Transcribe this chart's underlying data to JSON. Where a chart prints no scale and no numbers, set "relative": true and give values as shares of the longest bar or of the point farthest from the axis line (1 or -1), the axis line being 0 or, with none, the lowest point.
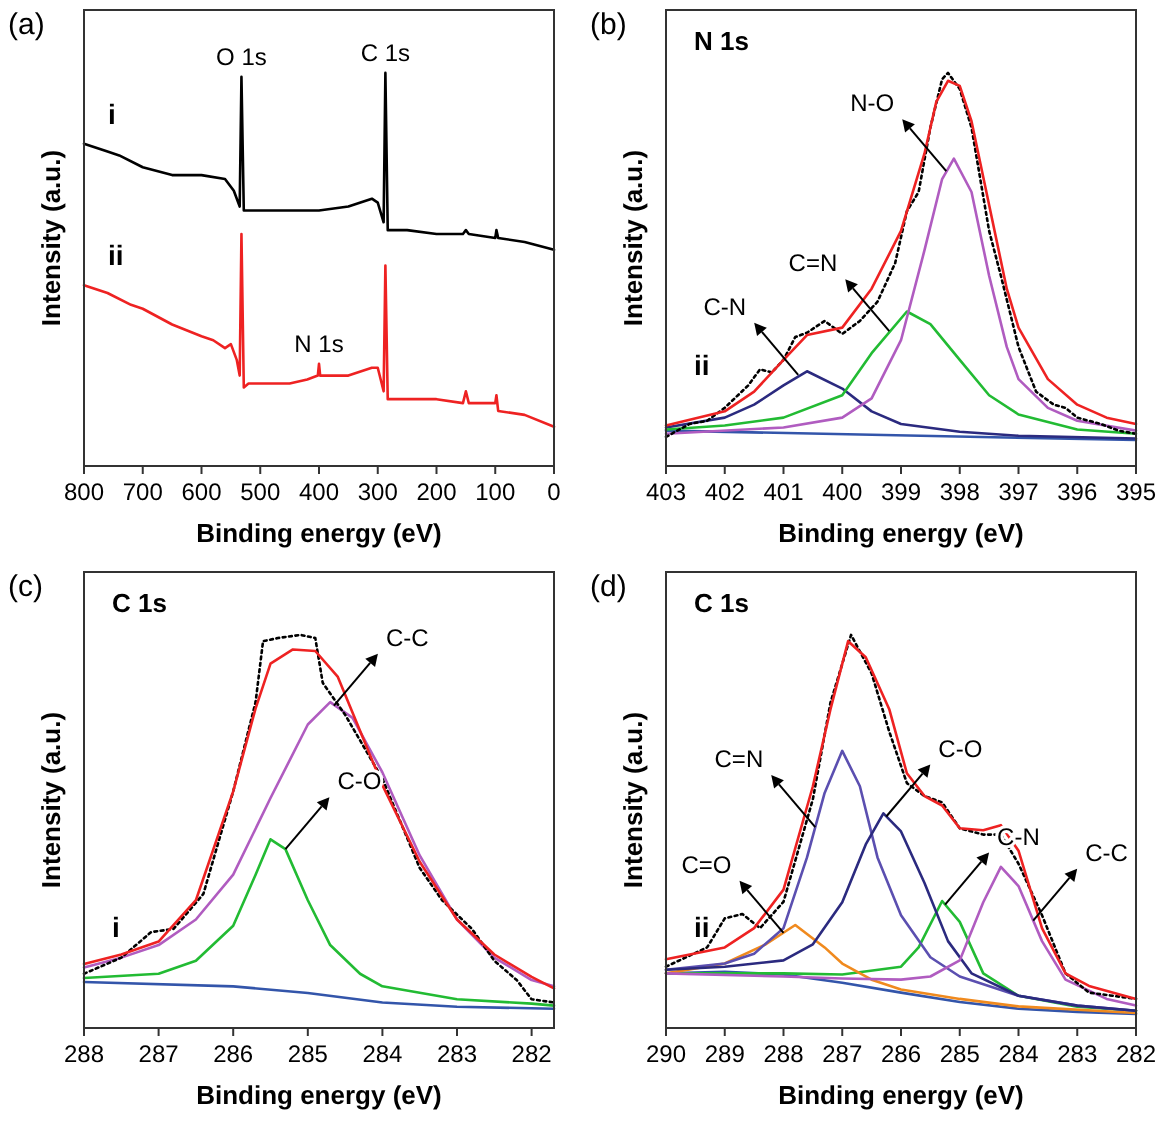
{
  "chart_data": [
    {
      "type": "line",
      "title": "(a)",
      "xlabel": "Binding energy (eV)",
      "ylabel": "Intensity (a.u.)",
      "relative": true,
      "xlim": [
        800,
        0
      ],
      "xticks": [
        800,
        700,
        600,
        500,
        400,
        300,
        200,
        100,
        0
      ],
      "series": [
        {
          "name": "i",
          "color": "#000000",
          "x": [
            800,
            760,
            740,
            700,
            650,
            600,
            560,
            545,
            535,
            532,
            528,
            520,
            450,
            400,
            350,
            310,
            300,
            290,
            287,
            283,
            250,
            200,
            155,
            150,
            145,
            100,
            98,
            95,
            50,
            0
          ],
          "values": [
            0.82,
            0.8,
            0.79,
            0.76,
            0.74,
            0.74,
            0.73,
            0.7,
            0.66,
            0.99,
            0.65,
            0.65,
            0.65,
            0.65,
            0.66,
            0.68,
            0.67,
            0.62,
            1.0,
            0.6,
            0.6,
            0.59,
            0.59,
            0.6,
            0.59,
            0.58,
            0.6,
            0.58,
            0.57,
            0.55
          ]
        },
        {
          "name": "ii",
          "color": "#ee2222",
          "x": [
            800,
            760,
            720,
            700,
            650,
            600,
            580,
            560,
            550,
            540,
            535,
            532,
            528,
            520,
            450,
            420,
            402,
            400,
            398,
            350,
            310,
            300,
            290,
            287,
            283,
            250,
            200,
            155,
            150,
            145,
            100,
            98,
            95,
            50,
            0
          ],
          "values": [
            0.46,
            0.44,
            0.41,
            0.4,
            0.36,
            0.33,
            0.32,
            0.3,
            0.31,
            0.27,
            0.23,
            0.59,
            0.2,
            0.21,
            0.21,
            0.22,
            0.23,
            0.26,
            0.23,
            0.23,
            0.25,
            0.25,
            0.19,
            0.51,
            0.17,
            0.17,
            0.17,
            0.16,
            0.19,
            0.16,
            0.16,
            0.18,
            0.14,
            0.13,
            0.1
          ]
        }
      ],
      "annotations": [
        {
          "text": "O 1s",
          "x": 532,
          "y": 0.99
        },
        {
          "text": "C 1s",
          "x": 287,
          "y": 1.0
        },
        {
          "text": "N 1s",
          "x": 400,
          "y": 0.26
        }
      ]
    },
    {
      "type": "line",
      "title": "(b)",
      "subtitle": "N 1s",
      "xlabel": "Binding energy (eV)",
      "ylabel": "Intensity (a.u.)",
      "relative": true,
      "xlim": [
        403,
        395
      ],
      "xticks": [
        403,
        402,
        401,
        400,
        399,
        398,
        397,
        396,
        395
      ],
      "series": [
        {
          "color": "#3355aa",
          "x": [
            403,
            395
          ],
          "values": [
            0.09,
            0.066
          ]
        },
        {
          "color": "#2b2a7f",
          "x": [
            403,
            402,
            401.5,
            401,
            400.6,
            400,
            399.5,
            399,
            398,
            397,
            395
          ],
          "values": [
            0.098,
            0.123,
            0.156,
            0.205,
            0.241,
            0.197,
            0.139,
            0.107,
            0.087,
            0.077,
            0.07
          ]
        },
        {
          "color": "#22bb33",
          "x": [
            403,
            402,
            401,
            400,
            399.5,
            398.9,
            398.5,
            398,
            397.5,
            397,
            396,
            395
          ],
          "values": [
            0.093,
            0.103,
            0.123,
            0.18,
            0.287,
            0.393,
            0.361,
            0.27,
            0.18,
            0.131,
            0.093,
            0.082
          ]
        },
        {
          "color": "#b05cc0",
          "x": [
            403,
            401,
            400,
            399.5,
            399,
            398.6,
            398.3,
            398.1,
            397.8,
            397.5,
            397.2,
            397,
            396.5,
            396,
            395
          ],
          "values": [
            0.082,
            0.098,
            0.123,
            0.172,
            0.32,
            0.549,
            0.73,
            0.782,
            0.697,
            0.484,
            0.303,
            0.221,
            0.148,
            0.115,
            0.09
          ]
        },
        {
          "color": "#000000",
          "line_style": "dotted",
          "x": [
            403,
            402.6,
            402.3,
            402,
            401.6,
            401.4,
            401.2,
            401,
            400.8,
            400.6,
            400.3,
            400,
            399.7,
            399.4,
            399.1,
            398.9,
            398.7,
            398.5,
            398.3,
            398.2,
            398,
            397.8,
            397.5,
            397.3,
            397,
            396.7,
            396.4,
            396.2,
            396,
            395.6,
            395.3,
            395
          ],
          "values": [
            0.074,
            0.107,
            0.115,
            0.148,
            0.205,
            0.246,
            0.238,
            0.27,
            0.328,
            0.339,
            0.369,
            0.336,
            0.369,
            0.418,
            0.516,
            0.648,
            0.697,
            0.861,
            0.984,
            1.0,
            0.959,
            0.861,
            0.598,
            0.484,
            0.303,
            0.189,
            0.156,
            0.148,
            0.123,
            0.107,
            0.09,
            0.082
          ]
        },
        {
          "color": "#ee2222",
          "x": [
            403,
            402,
            401.5,
            401,
            400.6,
            400,
            399.5,
            399,
            398.6,
            398.4,
            398.2,
            398,
            397.8,
            397.5,
            397.2,
            397,
            396.5,
            396,
            395.5,
            395
          ],
          "values": [
            0.103,
            0.139,
            0.189,
            0.27,
            0.333,
            0.352,
            0.451,
            0.598,
            0.795,
            0.926,
            0.98,
            0.967,
            0.877,
            0.664,
            0.451,
            0.352,
            0.221,
            0.156,
            0.123,
            0.107
          ]
        }
      ],
      "annotations": [
        "ii",
        {
          "text": "C-N",
          "x": 400.75,
          "y": 0.232
        },
        {
          "text": "C=N",
          "x": 399.2,
          "y": 0.343
        },
        {
          "text": "N-O",
          "x": 398.23,
          "y": 0.75
        }
      ]
    },
    {
      "type": "line",
      "title": "(c)",
      "subtitle": "C 1s",
      "xlabel": "Binding energy (eV)",
      "ylabel": "Intensity (a.u.)",
      "relative": true,
      "xlim": [
        288,
        281.7
      ],
      "xticks": [
        288,
        287,
        286,
        285,
        284,
        283,
        282
      ],
      "series": [
        {
          "color": "#3355aa",
          "x": [
            288,
            286,
            285,
            284,
            283,
            281.7
          ],
          "values": [
            0.117,
            0.106,
            0.089,
            0.065,
            0.054,
            0.049
          ]
        },
        {
          "color": "#22bb33",
          "x": [
            288,
            287,
            286.5,
            286,
            285.7,
            285.5,
            285.3,
            285,
            284.7,
            284.3,
            284,
            283,
            282,
            281.7
          ],
          "values": [
            0.127,
            0.138,
            0.171,
            0.26,
            0.39,
            0.48,
            0.455,
            0.325,
            0.211,
            0.138,
            0.106,
            0.073,
            0.062,
            0.057
          ]
        },
        {
          "color": "#b05cc0",
          "x": [
            288,
            287.5,
            287,
            286.5,
            286,
            285.5,
            285,
            284.7,
            284.4,
            284,
            283.5,
            283,
            282.5,
            282,
            281.7
          ],
          "values": [
            0.154,
            0.179,
            0.211,
            0.276,
            0.39,
            0.585,
            0.772,
            0.829,
            0.789,
            0.65,
            0.439,
            0.276,
            0.179,
            0.122,
            0.106
          ]
        },
        {
          "color": "#000000",
          "line_style": "dotted",
          "x": [
            288,
            287.5,
            287.1,
            286.8,
            286.4,
            286,
            285.7,
            285.6,
            285.4,
            285.1,
            284.9,
            284.8,
            284.5,
            284,
            283.5,
            283.2,
            282.8,
            282.5,
            282.2,
            282,
            281.7
          ],
          "values": [
            0.138,
            0.179,
            0.244,
            0.252,
            0.341,
            0.602,
            0.829,
            0.984,
            0.992,
            1.0,
            0.992,
            0.878,
            0.797,
            0.634,
            0.407,
            0.325,
            0.252,
            0.171,
            0.122,
            0.073,
            0.065
          ]
        },
        {
          "color": "#ee2222",
          "x": [
            288,
            287.5,
            287,
            286.5,
            286,
            285.7,
            285.5,
            285.2,
            284.9,
            284.6,
            284.3,
            284,
            283.5,
            283,
            282.5,
            282,
            281.7
          ],
          "values": [
            0.163,
            0.187,
            0.22,
            0.325,
            0.602,
            0.813,
            0.927,
            0.963,
            0.959,
            0.894,
            0.756,
            0.618,
            0.423,
            0.276,
            0.187,
            0.13,
            0.101
          ]
        }
      ],
      "annotations": [
        "i",
        {
          "text": "C-C",
          "x": 284.65,
          "y": 0.82
        },
        {
          "text": "C-O",
          "x": 285.3,
          "y": 0.455
        }
      ]
    },
    {
      "type": "line",
      "title": "(d)",
      "subtitle": "C 1s",
      "xlabel": "Binding energy (eV)",
      "ylabel": "Intensity (a.u.)",
      "relative": true,
      "xlim": [
        290,
        282
      ],
      "xticks": [
        290,
        289,
        288,
        287,
        286,
        285,
        284,
        283,
        282
      ],
      "series": [
        {
          "color": "#3355aa",
          "x": [
            290,
            289,
            288,
            287,
            286,
            285,
            284,
            283,
            282
          ],
          "values": [
            0.139,
            0.143,
            0.136,
            0.115,
            0.09,
            0.066,
            0.049,
            0.041,
            0.036
          ]
        },
        {
          "color": "#22bb33",
          "x": [
            290,
            288,
            287,
            286,
            285.7,
            285.3,
            285,
            284.6,
            284,
            283,
            282
          ],
          "values": [
            0.139,
            0.139,
            0.136,
            0.156,
            0.205,
            0.323,
            0.27,
            0.139,
            0.082,
            0.054,
            0.044
          ]
        },
        {
          "color": "#f08a1e",
          "x": [
            290,
            289,
            288.3,
            287.8,
            287.3,
            287,
            286.5,
            286,
            285,
            284,
            282
          ],
          "values": [
            0.139,
            0.164,
            0.213,
            0.262,
            0.205,
            0.164,
            0.123,
            0.098,
            0.074,
            0.055,
            0.038
          ]
        },
        {
          "color": "#5b4fb0",
          "x": [
            290,
            289,
            288.5,
            288,
            287.6,
            287.3,
            287,
            286.7,
            286.4,
            286,
            285.5,
            285,
            284,
            283,
            282
          ],
          "values": [
            0.148,
            0.164,
            0.189,
            0.254,
            0.434,
            0.598,
            0.705,
            0.615,
            0.434,
            0.287,
            0.18,
            0.131,
            0.082,
            0.057,
            0.044
          ]
        },
        {
          "color": "#2b2a7f",
          "x": [
            290,
            289,
            288,
            287.5,
            287,
            286.6,
            286.3,
            286,
            285.6,
            285.2,
            284.8,
            284,
            283,
            282
          ],
          "values": [
            0.148,
            0.156,
            0.172,
            0.213,
            0.32,
            0.467,
            0.546,
            0.5,
            0.369,
            0.221,
            0.139,
            0.082,
            0.057,
            0.044
          ]
        },
        {
          "color": "#b05cc0",
          "x": [
            290,
            288,
            287,
            286,
            285.5,
            285,
            284.6,
            284.3,
            284,
            283.6,
            283.2,
            282.5,
            282
          ],
          "values": [
            0.139,
            0.131,
            0.126,
            0.123,
            0.131,
            0.172,
            0.32,
            0.41,
            0.361,
            0.221,
            0.123,
            0.074,
            0.057
          ]
        },
        {
          "color": "#000000",
          "line_style": "dotted",
          "x": [
            290,
            289.3,
            289,
            288.7,
            288.4,
            288,
            287.5,
            287.2,
            286.85,
            286.5,
            286.2,
            285.9,
            285.6,
            285.3,
            285,
            284.6,
            284.3,
            284,
            283.6,
            283.2,
            282.8,
            282
          ],
          "values": [
            0.156,
            0.205,
            0.279,
            0.29,
            0.254,
            0.321,
            0.582,
            0.828,
            1.0,
            0.902,
            0.754,
            0.623,
            0.59,
            0.574,
            0.508,
            0.492,
            0.492,
            0.418,
            0.287,
            0.139,
            0.09,
            0.074
          ]
        },
        {
          "color": "#ee2222",
          "x": [
            290,
            289,
            288.5,
            288,
            287.5,
            287.2,
            286.9,
            286.6,
            286.2,
            285.9,
            285.6,
            285.3,
            285,
            284.6,
            284.3,
            284,
            283.6,
            283.2,
            282.8,
            282
          ],
          "values": [
            0.175,
            0.205,
            0.254,
            0.352,
            0.615,
            0.811,
            0.984,
            0.943,
            0.811,
            0.648,
            0.59,
            0.566,
            0.508,
            0.503,
            0.516,
            0.451,
            0.254,
            0.139,
            0.107,
            0.074
          ]
        }
      ],
      "annotations": [
        "ii",
        {
          "text": "C=N",
          "x": 287.46,
          "y": 0.511
        },
        {
          "text": "C=O",
          "x": 288.0,
          "y": 0.242
        },
        {
          "text": "C-O",
          "x": 286.25,
          "y": 0.538
        },
        {
          "text": "C-N",
          "x": 285.25,
          "y": 0.314
        },
        {
          "text": "C-C",
          "x": 283.75,
          "y": 0.273
        }
      ]
    }
  ]
}
